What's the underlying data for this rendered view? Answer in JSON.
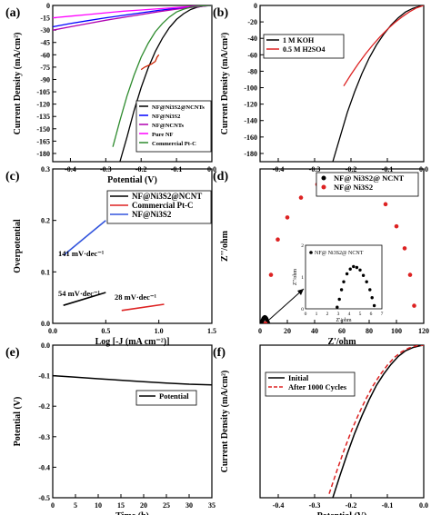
{
  "chart_data": [
    {
      "panel": "(a)",
      "type": "line",
      "xlabel": "Potential (V)",
      "ylabel": "Current Density (mA/cm²)",
      "xlim": [
        -0.45,
        0.0
      ],
      "ylim": [
        -190,
        0
      ],
      "xticks": [
        "-0.4",
        "-0.3",
        "-0.2",
        "-0.1",
        "0.0"
      ],
      "yticks": [
        "0",
        "-15",
        "-30",
        "-45",
        "-60",
        "-75",
        "-90",
        "-105",
        "-120",
        "-135",
        "-150",
        "-165",
        "-180"
      ],
      "legend_position": "bottom-right",
      "series": [
        {
          "name": "NF@Ni3S2@NCNTs",
          "color": "#000000",
          "x": [
            -0.26,
            -0.24,
            -0.22,
            -0.2,
            -0.18,
            -0.16,
            -0.14,
            -0.12,
            -0.1,
            -0.08,
            -0.06,
            -0.04,
            -0.02,
            0.0
          ],
          "y": [
            -190,
            -160,
            -128,
            -100,
            -76,
            -56,
            -40,
            -27,
            -17,
            -10,
            -5,
            -2,
            -0.5,
            0
          ]
        },
        {
          "name": "NF@Ni3S2",
          "color": "#0000ff",
          "x": [
            -0.45,
            -0.4,
            -0.35,
            -0.3,
            -0.25,
            -0.2,
            -0.15,
            -0.1,
            -0.05,
            0.0
          ],
          "y": [
            -26,
            -22,
            -18.5,
            -15,
            -12,
            -9,
            -6,
            -3.5,
            -1.5,
            0
          ]
        },
        {
          "name": "NF@NCNTs",
          "color": "#b000b0",
          "x": [
            -0.45,
            -0.4,
            -0.35,
            -0.3,
            -0.25,
            -0.2,
            -0.15,
            -0.1,
            -0.05,
            0.0
          ],
          "y": [
            -30,
            -26,
            -22,
            -18,
            -14.5,
            -11,
            -7.5,
            -4.5,
            -2,
            0
          ]
        },
        {
          "name": "Pure NF",
          "color": "#ff00ff",
          "x": [
            -0.45,
            -0.4,
            -0.35,
            -0.3,
            -0.25,
            -0.2,
            -0.15,
            -0.1,
            -0.05,
            0.0
          ],
          "y": [
            -15,
            -13,
            -11,
            -9,
            -7,
            -5.5,
            -4,
            -2.5,
            -1,
            0
          ]
        },
        {
          "name": "Commercial Pt-C",
          "color": "#2e8b2e",
          "x": [
            -0.28,
            -0.26,
            -0.24,
            -0.22,
            -0.2,
            -0.18,
            -0.16,
            -0.14,
            -0.12,
            -0.1,
            -0.08,
            -0.06,
            -0.04,
            -0.02,
            0.0
          ],
          "y": [
            -172,
            -140,
            -110,
            -85,
            -63,
            -46,
            -32,
            -22,
            -14,
            -8,
            -4.5,
            -2.2,
            -1,
            -0.3,
            0
          ]
        },
        {
          "name": "",
          "color": "#cc2200",
          "x": [
            -0.2,
            -0.19,
            -0.18,
            -0.17,
            -0.16,
            -0.155,
            -0.15
          ],
          "y": [
            -78,
            -75,
            -73,
            -71,
            -68,
            -63,
            -60
          ]
        }
      ]
    },
    {
      "panel": "(b)",
      "type": "line",
      "xlabel": "Potential (V)",
      "ylabel": "Current Density (mA/cm²)",
      "xlim": [
        -0.45,
        0.0
      ],
      "ylim": [
        -190,
        0
      ],
      "xticks": [
        "-0.4",
        "-0.3",
        "-0.2",
        "-0.1",
        "0.0"
      ],
      "yticks": [
        "0",
        "-20",
        "-40",
        "-60",
        "-80",
        "-100",
        "-120",
        "-140",
        "-160",
        "-180"
      ],
      "legend_position": "top-left",
      "series": [
        {
          "name": "1 M KOH",
          "color": "#000000",
          "x": [
            -0.25,
            -0.23,
            -0.21,
            -0.19,
            -0.17,
            -0.15,
            -0.13,
            -0.11,
            -0.09,
            -0.07,
            -0.05,
            -0.03,
            -0.01,
            0.0
          ],
          "y": [
            -190,
            -160,
            -130,
            -105,
            -83,
            -64,
            -48,
            -35,
            -24,
            -15,
            -8,
            -3.5,
            -0.8,
            0
          ]
        },
        {
          "name": "0.5 M H2SO4",
          "color": "#dd2222",
          "x": [
            -0.22,
            -0.2,
            -0.18,
            -0.16,
            -0.14,
            -0.12,
            -0.1,
            -0.08,
            -0.06,
            -0.04,
            -0.02,
            0.0
          ],
          "y": [
            -98,
            -84,
            -71,
            -59,
            -48,
            -38,
            -29,
            -21,
            -14,
            -8,
            -3,
            0
          ]
        }
      ]
    },
    {
      "panel": "(c)",
      "type": "line",
      "xlabel": "Log [-J (mA cm⁻²)]",
      "ylabel": "Overpotential",
      "xlim": [
        0.0,
        1.5
      ],
      "ylim": [
        0.0,
        0.3
      ],
      "xticks": [
        "0.0",
        "0.5",
        "1.0",
        "1.5"
      ],
      "yticks": [
        "0.0",
        "0.1",
        "0.2",
        "0.3"
      ],
      "legend_position": "top-right",
      "series": [
        {
          "name": "NF@Ni3S2@NCNT",
          "color": "#000000",
          "x": [
            0.1,
            0.5
          ],
          "y": [
            0.035,
            0.06
          ]
        },
        {
          "name": "Commercial Pt-C",
          "color": "#dd2222",
          "x": [
            0.65,
            1.05
          ],
          "y": [
            0.025,
            0.037
          ]
        },
        {
          "name": "NF@Ni3S2",
          "color": "#3355dd",
          "x": [
            0.1,
            0.5
          ],
          "y": [
            0.132,
            0.2
          ]
        }
      ],
      "annotations": [
        "141 mV·dec⁻¹",
        "54 mV·dec⁻¹",
        "28 mV·dec⁻¹"
      ]
    },
    {
      "panel": "(d)",
      "type": "scatter",
      "xlabel": "Z'/ohm",
      "ylabel": "Z''/ohm",
      "xlim": [
        0,
        120
      ],
      "ylim": [
        0,
        35
      ],
      "xticks": [
        "0",
        "20",
        "40",
        "60",
        "80",
        "100",
        "120"
      ],
      "legend_position": "top-right",
      "series": [
        {
          "name": "NF@ Ni3S2@ NCNT",
          "color": "#000000",
          "x": [
            1,
            1.5,
            2,
            2.5,
            3,
            3.5,
            4,
            4.5,
            5,
            5.5,
            6
          ],
          "y": [
            0,
            0.4,
            0.8,
            1.1,
            1.3,
            1.4,
            1.3,
            1.1,
            0.8,
            0.4,
            0
          ]
        },
        {
          "name": "NF@ Ni3S2",
          "color": "#dd2222",
          "x": [
            4,
            8,
            13,
            20,
            30,
            42,
            56,
            70,
            82,
            92,
            100,
            106,
            110,
            113
          ],
          "y": [
            0,
            11,
            19,
            24,
            28.5,
            31.5,
            33,
            32.5,
            30.5,
            27,
            22,
            17,
            11,
            4
          ]
        }
      ],
      "inset": {
        "xlabel": "Z'/ohm",
        "ylabel": "Z''/ohm",
        "xlim": [
          0,
          7
        ],
        "ylim": [
          0,
          2
        ],
        "xticks": [
          "0",
          "1",
          "2",
          "3",
          "4",
          "5",
          "6",
          "7"
        ],
        "yticks": [
          "0",
          "1",
          "2"
        ],
        "legend": "NF@ Ni3S2@ NCNT",
        "x": [
          2.9,
          3.1,
          3.3,
          3.5,
          3.8,
          4.1,
          4.4,
          4.7,
          5.0,
          5.3,
          5.6,
          5.9,
          6.1,
          6.3
        ],
        "y": [
          0.05,
          0.3,
          0.6,
          0.85,
          1.1,
          1.25,
          1.33,
          1.3,
          1.22,
          1.05,
          0.85,
          0.6,
          0.35,
          0.1
        ]
      }
    },
    {
      "panel": "(e)",
      "type": "line",
      "xlabel": "Time (h)",
      "ylabel": "Potential (V)",
      "xlim": [
        0,
        35
      ],
      "ylim": [
        -0.5,
        0.0
      ],
      "xticks": [
        "0",
        "5",
        "10",
        "15",
        "20",
        "25",
        "30",
        "35"
      ],
      "yticks": [
        "0.0",
        "-0.1",
        "-0.2",
        "-0.3",
        "-0.4",
        "-0.5"
      ],
      "legend_position": "middle-right",
      "series": [
        {
          "name": "Potential",
          "color": "#000000",
          "x": [
            0,
            2,
            5,
            10,
            15,
            20,
            25,
            30,
            35
          ],
          "y": [
            -0.1,
            -0.102,
            -0.105,
            -0.11,
            -0.115,
            -0.12,
            -0.124,
            -0.128,
            -0.13
          ]
        }
      ]
    },
    {
      "panel": "(f)",
      "type": "line",
      "xlabel": "Potential (V)",
      "ylabel": "Current Density (mA/cm²)",
      "xlim": [
        -0.45,
        0.0
      ],
      "ylim": [
        -190,
        0
      ],
      "xticks": [
        "-0.4",
        "-0.3",
        "-0.2",
        "-0.1",
        "0.0"
      ],
      "legend_position": "top-left",
      "series": [
        {
          "name": "Initial",
          "color": "#000000",
          "style": "solid",
          "x": [
            -0.25,
            -0.23,
            -0.21,
            -0.19,
            -0.17,
            -0.15,
            -0.13,
            -0.11,
            -0.09,
            -0.07,
            -0.05,
            -0.03,
            -0.01,
            0.0
          ],
          "y": [
            -190,
            -162,
            -135,
            -110,
            -88,
            -68,
            -50,
            -36,
            -24,
            -14,
            -7,
            -3,
            -0.7,
            0
          ]
        },
        {
          "name": "After 1000 Cycles",
          "color": "#dd2222",
          "style": "dashed",
          "x": [
            -0.26,
            -0.24,
            -0.22,
            -0.2,
            -0.18,
            -0.16,
            -0.14,
            -0.12,
            -0.1,
            -0.08,
            -0.06,
            -0.04,
            -0.02,
            0.0
          ],
          "y": [
            -185,
            -158,
            -132,
            -108,
            -87,
            -68,
            -51,
            -37,
            -25,
            -15,
            -8,
            -3.5,
            -0.8,
            0
          ]
        }
      ]
    }
  ]
}
